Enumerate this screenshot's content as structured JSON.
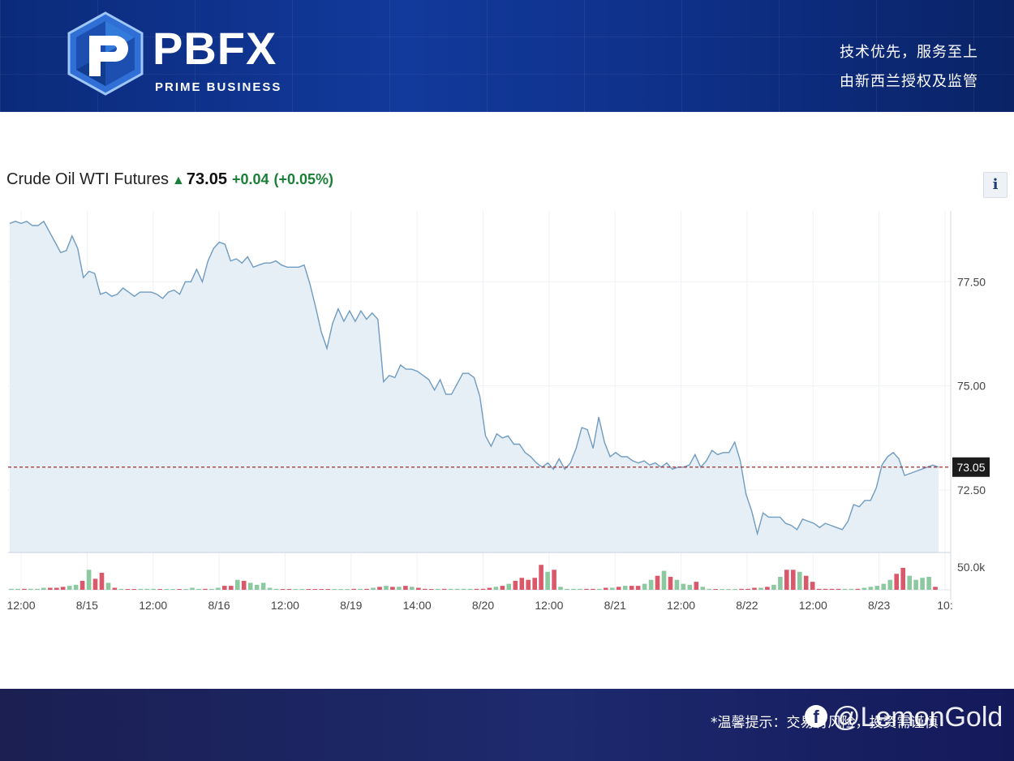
{
  "header": {
    "logo_text": "PBFX",
    "logo_sub": "PRIME BUSINESS",
    "slogan_line1": "技术优先，服务至上",
    "slogan_line2": "由新西兰授权及监管",
    "colors": {
      "banner": "#123a9c",
      "logo_accent": "#3aa0e8"
    }
  },
  "chart_header": {
    "instrument": "Crude Oil WTI Futures",
    "arrow_icon": "up-arrow-icon",
    "last_price": "73.05",
    "change": "+0.04",
    "change_pct": "(+0.05%)",
    "info_label": "i"
  },
  "chart_data": {
    "type": "area",
    "price_series": {
      "values": [
        78.9,
        78.95,
        78.9,
        78.95,
        78.85,
        78.85,
        78.95,
        78.7,
        78.45,
        78.2,
        78.25,
        78.6,
        78.3,
        77.6,
        77.75,
        77.7,
        77.2,
        77.25,
        77.15,
        77.2,
        77.35,
        77.25,
        77.15,
        77.25,
        77.25,
        77.25,
        77.2,
        77.1,
        77.25,
        77.3,
        77.2,
        77.5,
        77.5,
        77.8,
        77.5,
        78.0,
        78.3,
        78.45,
        78.4,
        78.0,
        78.05,
        77.95,
        78.1,
        77.85,
        77.9,
        77.95,
        77.95,
        78.0,
        77.9,
        77.85,
        77.85,
        77.85,
        77.9,
        77.45,
        76.9,
        76.3,
        75.9,
        76.5,
        76.85,
        76.55,
        76.8,
        76.55,
        76.8,
        76.6,
        76.75,
        76.6,
        75.1,
        75.25,
        75.2,
        75.5,
        75.4,
        75.4,
        75.35,
        75.25,
        75.15,
        74.9,
        75.15,
        74.8,
        74.8,
        75.05,
        75.3,
        75.3,
        75.2,
        74.75,
        73.8,
        73.55,
        73.85,
        73.75,
        73.8,
        73.6,
        73.6,
        73.4,
        73.3,
        73.15,
        73.05,
        73.15,
        73.0,
        73.25,
        73.0,
        73.15,
        73.5,
        74.0,
        73.95,
        73.5,
        74.25,
        73.65,
        73.3,
        73.4,
        73.3,
        73.3,
        73.2,
        73.15,
        73.2,
        73.1,
        73.15,
        73.05,
        73.15,
        73.0,
        73.05,
        73.05,
        73.1,
        73.35,
        73.05,
        73.2,
        73.45,
        73.35,
        73.4,
        73.4,
        73.65,
        73.2,
        72.4,
        72.0,
        71.45,
        71.95,
        71.85,
        71.85,
        71.85,
        71.7,
        71.65,
        71.55,
        71.8,
        71.75,
        71.7,
        71.6,
        71.7,
        71.65,
        71.6,
        71.55,
        71.75,
        72.15,
        72.1,
        72.25,
        72.25,
        72.55,
        73.1,
        73.3,
        73.4,
        73.25,
        72.85,
        72.9,
        72.95,
        73.0,
        73.05,
        73.1,
        73.05
      ],
      "last": 73.05
    },
    "volume_series": {
      "colors": {
        "up": "#8cc9a0",
        "down": "#d9596a"
      },
      "values": [
        1,
        1,
        1,
        1,
        1,
        2,
        2,
        2,
        3,
        4,
        5,
        9,
        20,
        11,
        17,
        7,
        2,
        1,
        0,
        0,
        1,
        1,
        1,
        0,
        0,
        0,
        0,
        0,
        2,
        1,
        1,
        1,
        2,
        4,
        4,
        10,
        9,
        7,
        5,
        7,
        2,
        1,
        0,
        0,
        0,
        0,
        0,
        0,
        0,
        0,
        0,
        0,
        0,
        1,
        1,
        1,
        2,
        3,
        4,
        3,
        3,
        4,
        3,
        2,
        1,
        0,
        1,
        1,
        1,
        1,
        1,
        1,
        1,
        1,
        2,
        3,
        4,
        6,
        9,
        12,
        10,
        12,
        25,
        18,
        20,
        3,
        1,
        1,
        1,
        1,
        1,
        1,
        2,
        2,
        3,
        4,
        4,
        4,
        6,
        10,
        14,
        19,
        13,
        10,
        6,
        5,
        8,
        3,
        1,
        0,
        0,
        0,
        0,
        1,
        1,
        2,
        2,
        3,
        5,
        13,
        20,
        20,
        18,
        14,
        8,
        1,
        1,
        1,
        1,
        1,
        1,
        1,
        2,
        3,
        4,
        6,
        10,
        16,
        22,
        14,
        10,
        12,
        13,
        3
      ]
    },
    "y_axis": {
      "ticks": [
        "77.50",
        "75.00",
        "72.50"
      ],
      "ylim": [
        71.0,
        79.2
      ]
    },
    "volume_axis": {
      "tick": "50.0k"
    },
    "x_axis": {
      "ticks": [
        "12:00",
        "8/15",
        "12:00",
        "8/16",
        "12:00",
        "8/19",
        "14:00",
        "8/20",
        "12:00",
        "8/21",
        "12:00",
        "8/22",
        "12:00",
        "8/23",
        "10:"
      ]
    },
    "reference_line": {
      "value": 73.05,
      "label": "73.05",
      "style": "dashed",
      "color": "#9b2c2c"
    },
    "grid": true,
    "fill_color": "#e6eef6",
    "line_color": "#6f9cc0"
  },
  "footer": {
    "note": "*温馨提示：交易有风险，投资需谨慎",
    "watermark": "@LemonGold",
    "watermark_icon": "facebook-icon"
  }
}
